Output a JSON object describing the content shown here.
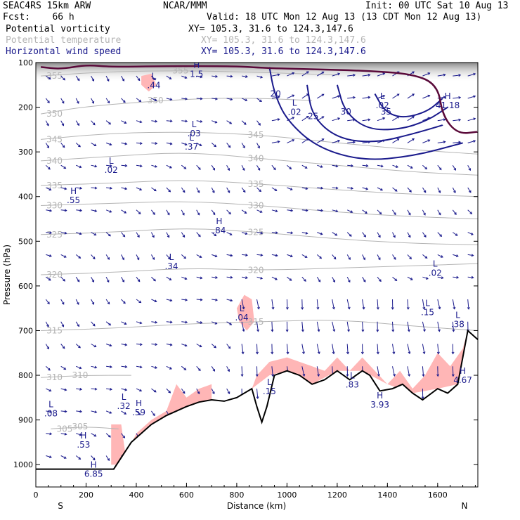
{
  "header": {
    "model": "SEAC4RS 15km ARW",
    "org": "NCAR/MMM",
    "init": "Init: 00 UTC Sat 10 Aug 13",
    "fcst": "Fcst:    66 h",
    "valid": "Valid: 18 UTC Mon 12 Aug 13 (13 CDT Mon 12 Aug 13)",
    "fields": [
      {
        "name": "Potential vorticity",
        "xy": "XY= 105.3, 31.6 to 124.3,147.6",
        "color": "#000000"
      },
      {
        "name": "Potential temperature",
        "xy": "XY= 105.3, 31.6 to 124.3,147.6",
        "color": "#b4b4b4"
      },
      {
        "name": "Horizontal wind speed",
        "xy": "XY= 105.3, 31.6 to 124.3,147.6",
        "color": "#1a1a8c"
      }
    ]
  },
  "chart_data": {
    "type": "cross-section",
    "xlabel": "Distance (km)",
    "ylabel": "Pressure (hPa)",
    "xlim": [
      0,
      1760
    ],
    "ylim": [
      1050,
      100
    ],
    "x_ticks": [
      0,
      200,
      400,
      600,
      800,
      1000,
      1200,
      1400,
      1600
    ],
    "x_tick_labels": [
      "0",
      "200",
      "400",
      "600",
      "800",
      "1000",
      "1200",
      "1400",
      "1600"
    ],
    "y_ticks": [
      100,
      200,
      300,
      400,
      500,
      600,
      700,
      800,
      900,
      1000
    ],
    "y_tick_labels": [
      "100",
      "200",
      "300",
      "400",
      "500",
      "600",
      "700",
      "800",
      "900",
      "1000"
    ],
    "end_labels": {
      "left": "S",
      "right": "N"
    },
    "colors": {
      "theta": "#b4b4b4",
      "wind": "#1a1a8c",
      "pv_fill": "#ffb6b6",
      "pv_line": "#5a0a3a",
      "terrain": "#000000"
    },
    "terrain": [
      [
        0,
        1010
      ],
      [
        120,
        1010
      ],
      [
        310,
        1010
      ],
      [
        380,
        950
      ],
      [
        460,
        910
      ],
      [
        520,
        890
      ],
      [
        560,
        880
      ],
      [
        600,
        870
      ],
      [
        650,
        860
      ],
      [
        700,
        855
      ],
      [
        750,
        858
      ],
      [
        800,
        850
      ],
      [
        860,
        830
      ],
      [
        880,
        870
      ],
      [
        900,
        905
      ],
      [
        920,
        870
      ],
      [
        950,
        800
      ],
      [
        1000,
        790
      ],
      [
        1050,
        800
      ],
      [
        1100,
        820
      ],
      [
        1150,
        810
      ],
      [
        1200,
        790
      ],
      [
        1250,
        810
      ],
      [
        1300,
        790
      ],
      [
        1330,
        800
      ],
      [
        1370,
        835
      ],
      [
        1420,
        830
      ],
      [
        1460,
        820
      ],
      [
        1500,
        840
      ],
      [
        1540,
        855
      ],
      [
        1600,
        830
      ],
      [
        1640,
        840
      ],
      [
        1680,
        820
      ],
      [
        1720,
        700
      ],
      [
        1760,
        720
      ]
    ],
    "theta_contours": [
      {
        "label": "355",
        "points": [
          [
            20,
            130
          ],
          [
            300,
            120
          ],
          [
            600,
            118
          ],
          [
            900,
            122
          ],
          [
            1200,
            128
          ]
        ]
      },
      {
        "label": "350",
        "points": [
          [
            20,
            215
          ],
          [
            200,
            198
          ],
          [
            500,
            185
          ],
          [
            800,
            178
          ],
          [
            1100,
            185
          ]
        ]
      },
      {
        "label": "345",
        "points": [
          [
            20,
            272
          ],
          [
            300,
            258
          ],
          [
            600,
            255
          ],
          [
            900,
            262
          ],
          [
            1200,
            280
          ],
          [
            1500,
            295
          ],
          [
            1760,
            305
          ]
        ]
      },
      {
        "label": "340",
        "points": [
          [
            20,
            320
          ],
          [
            300,
            310
          ],
          [
            600,
            300
          ],
          [
            900,
            315
          ],
          [
            1200,
            330
          ],
          [
            1500,
            345
          ],
          [
            1760,
            352
          ]
        ]
      },
      {
        "label": "335",
        "points": [
          [
            20,
            375
          ],
          [
            300,
            370
          ],
          [
            600,
            362
          ],
          [
            900,
            372
          ],
          [
            1200,
            385
          ],
          [
            1500,
            395
          ],
          [
            1760,
            400
          ]
        ]
      },
      {
        "label": "330",
        "points": [
          [
            20,
            420
          ],
          [
            300,
            415
          ],
          [
            600,
            410
          ],
          [
            900,
            420
          ],
          [
            1200,
            435
          ],
          [
            1500,
            445
          ],
          [
            1760,
            450
          ]
        ]
      },
      {
        "label": "325",
        "points": [
          [
            20,
            485
          ],
          [
            300,
            480
          ],
          [
            600,
            470
          ],
          [
            900,
            480
          ],
          [
            1200,
            495
          ],
          [
            1500,
            505
          ],
          [
            1760,
            508
          ]
        ]
      },
      {
        "label": "320",
        "points": [
          [
            20,
            575
          ],
          [
            300,
            570
          ],
          [
            600,
            560
          ],
          [
            900,
            565
          ],
          [
            1200,
            560
          ],
          [
            1500,
            555
          ],
          [
            1760,
            550
          ]
        ]
      },
      {
        "label": "315",
        "points": [
          [
            20,
            700
          ],
          [
            300,
            695
          ],
          [
            600,
            685
          ],
          [
            900,
            680
          ],
          [
            1200,
            675
          ],
          [
            1500,
            690
          ],
          [
            1760,
            700
          ]
        ]
      },
      {
        "label": "310",
        "points": [
          [
            20,
            805
          ],
          [
            200,
            800
          ],
          [
            380,
            800
          ]
        ]
      },
      {
        "label": "305",
        "points": [
          [
            60,
            920
          ],
          [
            200,
            915
          ],
          [
            330,
            920
          ]
        ]
      }
    ],
    "wind_contours": [
      {
        "label": "20",
        "points": [
          [
            930,
            110
          ],
          [
            950,
            170
          ],
          [
            1000,
            230
          ],
          [
            1120,
            290
          ],
          [
            1300,
            320
          ],
          [
            1500,
            310
          ],
          [
            1700,
            280
          ]
        ]
      },
      {
        "label": "25",
        "points": [
          [
            1080,
            150
          ],
          [
            1100,
            220
          ],
          [
            1200,
            270
          ],
          [
            1350,
            280
          ],
          [
            1500,
            260
          ],
          [
            1620,
            240
          ]
        ]
      },
      {
        "label": "30",
        "points": [
          [
            1200,
            150
          ],
          [
            1230,
            210
          ],
          [
            1320,
            250
          ],
          [
            1450,
            250
          ],
          [
            1560,
            230
          ],
          [
            1640,
            200
          ]
        ]
      },
      {
        "label": "35",
        "points": [
          [
            1350,
            170
          ],
          [
            1390,
            210
          ],
          [
            1460,
            225
          ],
          [
            1560,
            210
          ],
          [
            1620,
            180
          ]
        ]
      }
    ],
    "pv_tropopause": [
      [
        20,
        110
      ],
      [
        100,
        115
      ],
      [
        200,
        105
      ],
      [
        300,
        110
      ],
      [
        500,
        108
      ],
      [
        800,
        108
      ],
      [
        900,
        112
      ],
      [
        1100,
        115
      ],
      [
        1300,
        118
      ],
      [
        1500,
        125
      ],
      [
        1600,
        150
      ],
      [
        1620,
        220
      ],
      [
        1680,
        260
      ],
      [
        1760,
        255
      ]
    ],
    "extrema_labels": [
      {
        "mark": "L",
        "value": ".44",
        "x": 470,
        "y": 140
      },
      {
        "mark": "H",
        "value": "1.5",
        "x": 640,
        "y": 115
      },
      {
        "mark": "L",
        "value": ".03",
        "x": 630,
        "y": 248
      },
      {
        "mark": "L",
        "value": ".37",
        "x": 620,
        "y": 278
      },
      {
        "mark": "L",
        "value": ".02",
        "x": 300,
        "y": 330
      },
      {
        "mark": "H",
        "value": ".55",
        "x": 150,
        "y": 397
      },
      {
        "mark": "H",
        "value": ".84",
        "x": 730,
        "y": 465
      },
      {
        "mark": "L",
        "value": ".34",
        "x": 540,
        "y": 545
      },
      {
        "mark": "L",
        "value": ".02",
        "x": 1030,
        "y": 200
      },
      {
        "mark": "L",
        "value": ".02",
        "x": 1380,
        "y": 185
      },
      {
        "mark": "H",
        "value": "41.18",
        "x": 1640,
        "y": 185
      },
      {
        "mark": "L",
        "value": ".02",
        "x": 1590,
        "y": 560
      },
      {
        "mark": "L",
        "value": ".04",
        "x": 820,
        "y": 660
      },
      {
        "mark": "L",
        "value": ".15",
        "x": 1560,
        "y": 648
      },
      {
        "mark": "L",
        "value": ".38",
        "x": 1680,
        "y": 675
      },
      {
        "mark": "H",
        "value": "4.67",
        "x": 1700,
        "y": 800
      },
      {
        "mark": "L",
        "value": ".15",
        "x": 930,
        "y": 825
      },
      {
        "mark": "L",
        "value": ".83",
        "x": 1260,
        "y": 810
      },
      {
        "mark": "H",
        "value": "3.93",
        "x": 1370,
        "y": 855
      },
      {
        "mark": "L",
        "value": ".08",
        "x": 60,
        "y": 875
      },
      {
        "mark": "L",
        "value": ".32",
        "x": 350,
        "y": 858
      },
      {
        "mark": "H",
        "value": ".59",
        "x": 410,
        "y": 872
      },
      {
        "mark": "H",
        "value": ".53",
        "x": 190,
        "y": 945
      },
      {
        "mark": "H",
        "value": "6.85",
        "x": 230,
        "y": 1010
      }
    ],
    "pv_fill_patches": [
      [
        [
          300,
          1000
        ],
        [
          300,
          910
        ],
        [
          340,
          910
        ],
        [
          360,
          990
        ],
        [
          380,
          950
        ],
        [
          440,
          920
        ],
        [
          520,
          890
        ],
        [
          600,
          870
        ],
        [
          650,
          860
        ],
        [
          700,
          855
        ],
        [
          700,
          820
        ],
        [
          650,
          830
        ],
        [
          600,
          850
        ],
        [
          560,
          820
        ],
        [
          520,
          880
        ],
        [
          460,
          900
        ],
        [
          400,
          930
        ],
        [
          340,
          1000
        ]
      ],
      [
        [
          860,
          830
        ],
        [
          930,
          800
        ],
        [
          1000,
          790
        ],
        [
          1100,
          820
        ],
        [
          1200,
          790
        ],
        [
          1300,
          790
        ],
        [
          1400,
          820
        ],
        [
          1500,
          840
        ],
        [
          1600,
          830
        ],
        [
          1680,
          820
        ],
        [
          1720,
          700
        ],
        [
          1700,
          740
        ],
        [
          1650,
          780
        ],
        [
          1600,
          750
        ],
        [
          1550,
          800
        ],
        [
          1500,
          830
        ],
        [
          1450,
          790
        ],
        [
          1400,
          820
        ],
        [
          1300,
          760
        ],
        [
          1250,
          790
        ],
        [
          1200,
          760
        ],
        [
          1150,
          790
        ],
        [
          1100,
          780
        ],
        [
          1000,
          760
        ],
        [
          930,
          770
        ],
        [
          880,
          800
        ]
      ],
      [
        [
          800,
          650
        ],
        [
          830,
          620
        ],
        [
          860,
          630
        ],
        [
          870,
          680
        ],
        [
          840,
          700
        ],
        [
          810,
          680
        ]
      ],
      [
        [
          420,
          130
        ],
        [
          460,
          125
        ],
        [
          480,
          150
        ],
        [
          450,
          165
        ],
        [
          420,
          150
        ]
      ]
    ],
    "wind_arrows": {
      "rows": [
        130,
        180,
        230,
        280,
        330,
        380,
        430,
        480,
        530,
        580,
        630,
        680,
        730,
        780,
        830,
        880,
        930,
        980
      ],
      "cols_km": [
        40,
        100,
        160,
        220,
        280,
        340,
        400,
        460,
        520,
        580,
        640,
        700,
        760,
        820,
        880,
        940,
        1000,
        1060,
        1120,
        1180,
        1240,
        1300,
        1360,
        1420,
        1480,
        1540,
        1600,
        1660,
        1720
      ]
    }
  }
}
